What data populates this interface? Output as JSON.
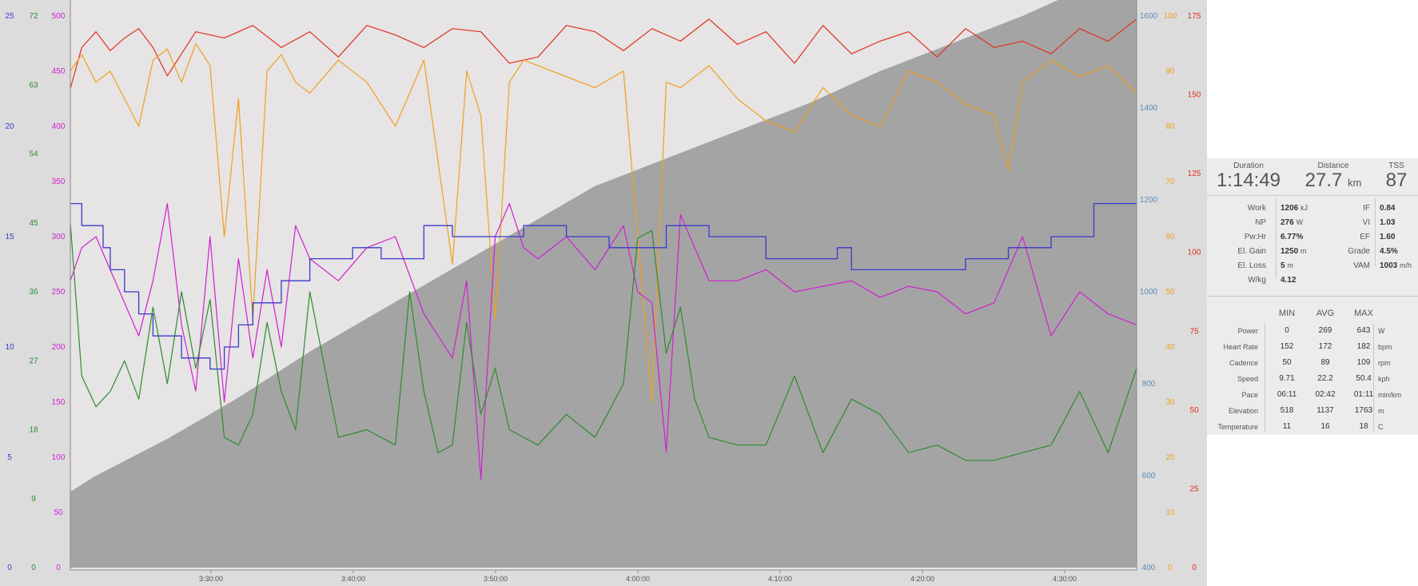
{
  "chart_data": {
    "type": "line",
    "x_axis": {
      "ticks": [
        "3:30:00",
        "3:40:00",
        "3:50:00",
        "4:00:00",
        "4:10:00",
        "4:20:00",
        "4:30:00"
      ],
      "range_minutes": [
        3.2,
        78.0
      ]
    },
    "left_axes": [
      {
        "name": "speed",
        "color": "#3a3acc",
        "range": [
          0,
          25
        ],
        "ticks": [
          "0",
          "5",
          "10",
          "15",
          "20",
          "25"
        ]
      },
      {
        "name": "cadence",
        "color": "#2e8b2e",
        "range": [
          0,
          72
        ],
        "ticks": [
          "0",
          "9",
          "18",
          "27",
          "36",
          "45",
          "54",
          "63",
          "72"
        ]
      },
      {
        "name": "power",
        "color": "#d020d0",
        "range": [
          0,
          500
        ],
        "ticks": [
          "0",
          "50",
          "100",
          "150",
          "200",
          "250",
          "300",
          "350",
          "400",
          "450",
          "500"
        ]
      }
    ],
    "right_axes": [
      {
        "name": "elevation",
        "color": "#5a8ab8",
        "range": [
          400,
          1600
        ],
        "ticks": [
          "400",
          "600",
          "800",
          "1000",
          "1200",
          "1400",
          "1600"
        ]
      },
      {
        "name": "orange",
        "color": "#f0a020",
        "range": [
          0,
          100
        ],
        "ticks": [
          "0",
          "10",
          "20",
          "30",
          "40",
          "50",
          "60",
          "70",
          "80",
          "90",
          "100"
        ]
      },
      {
        "name": "heart-rate",
        "color": "#e03020",
        "range": [
          0,
          175
        ],
        "ticks": [
          "0",
          "25",
          "50",
          "75",
          "100",
          "125",
          "150",
          "175"
        ]
      }
    ],
    "series": [
      {
        "color": "#a0a0a0",
        "axis": "elevation",
        "type": "area",
        "x": [
          3.2,
          5,
          10,
          15,
          20,
          25,
          30,
          35,
          40,
          45,
          50,
          55,
          60,
          65,
          70,
          75,
          78
        ],
        "y": [
          565,
          600,
          680,
          770,
          870,
          960,
          1050,
          1140,
          1230,
          1290,
          1350,
          1410,
          1480,
          1540,
          1600,
          1670,
          1737
        ]
      },
      {
        "color": "#e03020",
        "axis": "heart-rate",
        "x": [
          3.2,
          4,
          5,
          6,
          7,
          8,
          9,
          10,
          12,
          14,
          16,
          18,
          20,
          22,
          24,
          26,
          28,
          30,
          32,
          34,
          36,
          38,
          40,
          42,
          44,
          46,
          48,
          50,
          52,
          54,
          56,
          58,
          60,
          62,
          64,
          66,
          68,
          70,
          72,
          74,
          76,
          78
        ],
        "y": [
          152,
          165,
          170,
          164,
          168,
          171,
          165,
          156,
          170,
          168,
          172,
          165,
          170,
          162,
          172,
          169,
          165,
          171,
          170,
          160,
          162,
          172,
          170,
          164,
          171,
          167,
          174,
          166,
          170,
          160,
          172,
          163,
          167,
          170,
          162,
          171,
          165,
          167,
          163,
          171,
          167,
          174
        ]
      },
      {
        "color": "#f0a020",
        "axis": "orange",
        "x": [
          3.2,
          4,
          5,
          6,
          7,
          8,
          9,
          10,
          11,
          12,
          13,
          14,
          15,
          16,
          17,
          18,
          19,
          20,
          22,
          24,
          26,
          28,
          30,
          31,
          32,
          33,
          34,
          35,
          36,
          38,
          40,
          42,
          43,
          44,
          45,
          46,
          48,
          50,
          52,
          54,
          56,
          58,
          60,
          62,
          64,
          66,
          68,
          69,
          70,
          72,
          74,
          76,
          78
        ],
        "y": [
          90,
          93,
          88,
          90,
          85,
          80,
          92,
          94,
          88,
          95,
          91,
          60,
          85,
          45,
          90,
          93,
          88,
          86,
          92,
          88,
          80,
          92,
          55,
          90,
          82,
          45,
          88,
          92,
          91,
          89,
          87,
          90,
          60,
          30,
          88,
          87,
          91,
          85,
          81,
          79,
          87,
          82,
          80,
          90,
          88,
          84,
          82,
          72,
          88,
          92,
          89,
          91,
          86
        ]
      },
      {
        "color": "#d020d0",
        "axis": "power",
        "x": [
          3.2,
          4,
          5,
          6,
          7,
          8,
          9,
          10,
          11,
          12,
          13,
          14,
          15,
          16,
          17,
          18,
          19,
          20,
          22,
          24,
          26,
          28,
          30,
          31,
          32,
          33,
          34,
          35,
          36,
          38,
          40,
          42,
          43,
          44,
          45,
          46,
          47,
          48,
          50,
          52,
          54,
          56,
          58,
          60,
          62,
          64,
          66,
          68,
          70,
          72,
          74,
          76,
          78
        ],
        "y": [
          260,
          290,
          300,
          270,
          240,
          210,
          260,
          330,
          220,
          160,
          300,
          150,
          280,
          190,
          270,
          200,
          310,
          280,
          260,
          290,
          300,
          230,
          190,
          260,
          80,
          300,
          330,
          290,
          280,
          300,
          270,
          310,
          250,
          240,
          105,
          320,
          290,
          260,
          260,
          270,
          250,
          255,
          260,
          245,
          255,
          250,
          230,
          240,
          300,
          210,
          250,
          230,
          220
        ]
      },
      {
        "color": "#2e8b2e",
        "axis": "cadence",
        "x": [
          3.2,
          4,
          5,
          6,
          7,
          8,
          9,
          10,
          11,
          12,
          13,
          14,
          15,
          16,
          17,
          18,
          19,
          20,
          22,
          24,
          26,
          27,
          28,
          29,
          30,
          31,
          32,
          33,
          34,
          36,
          38,
          40,
          42,
          43,
          44,
          45,
          46,
          47,
          48,
          50,
          52,
          54,
          56,
          58,
          60,
          62,
          64,
          66,
          68,
          70,
          72,
          74,
          76,
          78
        ],
        "y": [
          45,
          25,
          21,
          23,
          27,
          22,
          34,
          24,
          36,
          26,
          35,
          17,
          16,
          20,
          32,
          23,
          18,
          36,
          17,
          18,
          16,
          36,
          23,
          15,
          16,
          32,
          20,
          26,
          18,
          16,
          20,
          17,
          24,
          43,
          44,
          28,
          34,
          22,
          17,
          16,
          16,
          25,
          15,
          22,
          20,
          15,
          16,
          14,
          14,
          15,
          16,
          23,
          15,
          26
        ]
      },
      {
        "color": "#3a3acc",
        "axis": "speed",
        "type": "step",
        "x": [
          3.2,
          4,
          5.5,
          6,
          7,
          8,
          9,
          11,
          13,
          14,
          15,
          16,
          18,
          20,
          23,
          25,
          28,
          30,
          32,
          35,
          38,
          41,
          45,
          48,
          52,
          55,
          57,
          58,
          60,
          62,
          64,
          66,
          69,
          72,
          75,
          78
        ],
        "y": [
          16.5,
          15.5,
          14.5,
          13.5,
          12.5,
          11.5,
          10.5,
          9.5,
          9.0,
          10.0,
          11.0,
          12.0,
          13.0,
          14.0,
          14.5,
          14.0,
          15.5,
          15.0,
          15.0,
          15.5,
          15.0,
          14.5,
          15.5,
          15.0,
          14.0,
          14.0,
          14.5,
          13.5,
          13.5,
          13.5,
          13.5,
          14.0,
          14.5,
          15.0,
          16.5,
          16.5
        ]
      }
    ]
  },
  "summary": {
    "duration": {
      "label": "Duration",
      "value": "1:14:49"
    },
    "distance": {
      "label": "Distance",
      "value": "27.7",
      "unit": "km"
    },
    "tss": {
      "label": "TSS",
      "value": "87"
    }
  },
  "metrics_left": [
    {
      "label": "Work",
      "value": "1206",
      "unit": "kJ"
    },
    {
      "label": "NP",
      "value": "276",
      "unit": "W"
    },
    {
      "label": "Pw:Hr",
      "value": "6.77%",
      "unit": ""
    },
    {
      "label": "El. Gain",
      "value": "1250",
      "unit": "m"
    },
    {
      "label": "El. Loss",
      "value": "5",
      "unit": "m"
    },
    {
      "label": "W/kg",
      "value": "4.12",
      "unit": ""
    }
  ],
  "metrics_right": [
    {
      "label": "IF",
      "value": "0.84",
      "unit": ""
    },
    {
      "label": "VI",
      "value": "1.03",
      "unit": ""
    },
    {
      "label": "EF",
      "value": "1.60",
      "unit": ""
    },
    {
      "label": "Grade",
      "value": "4.5%",
      "unit": ""
    },
    {
      "label": "VAM",
      "value": "1003",
      "unit": "m/h"
    }
  ],
  "table": {
    "headers": [
      "MIN",
      "AVG",
      "MAX"
    ],
    "rows": [
      {
        "label": "Power",
        "min": "0",
        "avg": "269",
        "max": "643",
        "unit": "W"
      },
      {
        "label": "Heart Rate",
        "min": "152",
        "avg": "172",
        "max": "182",
        "unit": "bpm"
      },
      {
        "label": "Cadence",
        "min": "50",
        "avg": "89",
        "max": "109",
        "unit": "rpm"
      },
      {
        "label": "Speed",
        "min": "9.71",
        "avg": "22.2",
        "max": "50.4",
        "unit": "kph"
      },
      {
        "label": "Pace",
        "min": "06:11",
        "avg": "02:42",
        "max": "01:11",
        "unit": "min/km"
      },
      {
        "label": "Elevation",
        "min": "518",
        "avg": "1137",
        "max": "1763",
        "unit": "m"
      },
      {
        "label": "Temperature",
        "min": "11",
        "avg": "16",
        "max": "18",
        "unit": "C"
      }
    ]
  }
}
